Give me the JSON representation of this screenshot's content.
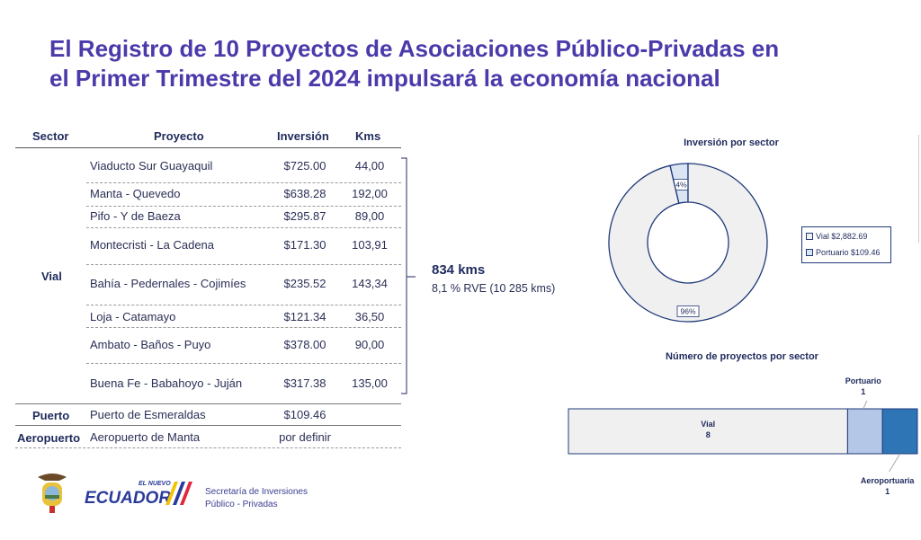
{
  "title": "El Registro de 10 Proyectos de Asociaciones Público-Privadas  en el Primer Trimestre del 2024 impulsará la economía nacional",
  "title_lines": [
    "El Registro de 10 Proyectos de Asociaciones Público-Privadas  en",
    "el Primer Trimestre del 2024 impulsará la economía nacional"
  ],
  "title_color": "#4a3aaa",
  "table": {
    "headers": [
      "Sector",
      "Proyecto",
      "Inversión",
      "Kms"
    ],
    "groups": [
      {
        "sector": "Vial",
        "rows": [
          {
            "proyecto": "Viaducto Sur Guayaquil",
            "inversion": "$725.00",
            "kms": "44,00"
          },
          {
            "proyecto": "Manta - Quevedo",
            "inversion": "$638.28",
            "kms": "192,00"
          },
          {
            "proyecto": "Pifo - Y de Baeza",
            "inversion": "$295.87",
            "kms": "89,00"
          },
          {
            "proyecto": "Montecristi - La Cadena",
            "inversion": "$171.30",
            "kms": "103,91"
          },
          {
            "proyecto": "Bahía - Pedernales - Cojimíes",
            "inversion": "$235.52",
            "kms": "143,34"
          },
          {
            "proyecto": "Loja - Catamayo",
            "inversion": "$121.34",
            "kms": "36,50"
          },
          {
            "proyecto": "Ambato - Baños - Puyo",
            "inversion": "$378.00",
            "kms": "90,00"
          },
          {
            "proyecto": "Buena Fe - Babahoyo - Juján",
            "inversion": "$317.38",
            "kms": "135,00"
          }
        ]
      },
      {
        "sector": "Puerto",
        "rows": [
          {
            "proyecto": "Puerto de Esmeraldas",
            "inversion": "$109.46",
            "kms": ""
          }
        ]
      },
      {
        "sector": "Aeropuerto",
        "rows": [
          {
            "proyecto": "Aeropuerto de Manta",
            "inversion": "por definir",
            "kms": ""
          }
        ]
      }
    ]
  },
  "summary": {
    "kms": "834 kms",
    "rve": "8,1 % RVE (10 285 kms)"
  },
  "chart_data": [
    {
      "type": "pie",
      "variant": "donut",
      "title": "Inversión por sector",
      "categories": [
        "Vial",
        "Portuario"
      ],
      "values": [
        2882.69,
        109.46
      ],
      "data_labels": [
        "96%",
        "4%"
      ],
      "legend": [
        "Vial $2,882.69",
        "Portuario $109.46"
      ],
      "legend_position": "right",
      "colors": [
        "#f0f0f0",
        "#dbe4f3"
      ]
    },
    {
      "type": "bar",
      "variant": "100% stacked horizontal",
      "title": "Número de proyectos por sector",
      "categories": [
        "Vial",
        "Portuario",
        "Aeroportuaria"
      ],
      "values": [
        8,
        1,
        1
      ],
      "colors": [
        "#f0f0f0",
        "#b4c7e7",
        "#2e75b6"
      ]
    }
  ],
  "footer": {
    "logo_text": "EL NUEVO ECUADOR",
    "org_lines": [
      "Secretaría de Inversiones",
      "Público - Privadas"
    ]
  }
}
